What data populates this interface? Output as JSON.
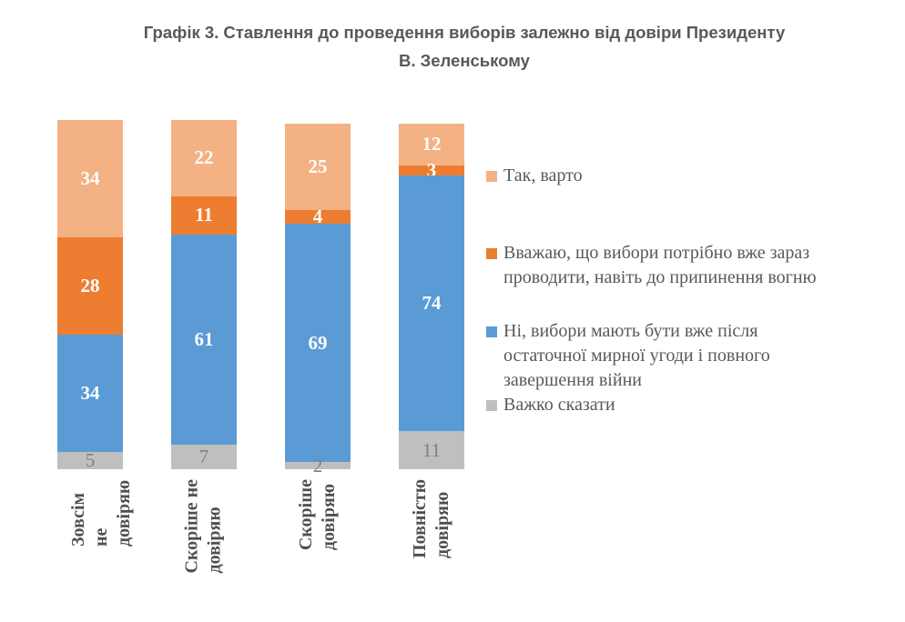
{
  "title": {
    "text": "Графік 3. Ставлення до проведення виборів залежно від довіри Президенту\nВ. Зеленському"
  },
  "chart_data": {
    "type": "bar",
    "subtype": "stacked-column-100",
    "title": "Графік 3. Ставлення до проведення виборів залежно від довіри Президенту В. Зеленському",
    "categories": [
      "Зовсім не\nдовіряю",
      "Скоріше не\nдовіряю",
      "Скоріше\nдовіряю",
      "Повністю\nдовіряю"
    ],
    "series": [
      {
        "name": "Так, варто",
        "color": "#F4B183",
        "label_color": "#FFFFFF",
        "values": [
          34,
          22,
          25,
          12
        ]
      },
      {
        "name": "Вважаю, що вибори потрібно вже зараз проводити, навіть до припинення вогню",
        "color": "#ED7D31",
        "label_color": "#FFFFFF",
        "values": [
          28,
          11,
          4,
          3
        ]
      },
      {
        "name": "Ні, вибори мають бути вже після остаточної мирної угоди і повного завершення війни",
        "color": "#5B9BD5",
        "label_color": "#FFFFFF",
        "values": [
          34,
          61,
          69,
          74
        ]
      },
      {
        "name": "Важко сказати",
        "color": "#BFBFBF",
        "label_color": "#7F7F7F",
        "values": [
          5,
          7,
          2,
          11
        ]
      }
    ],
    "value_unit": "percent",
    "ylim": [
      0,
      101
    ],
    "grid": false,
    "axis_lines": false,
    "legend_position": "right"
  },
  "legend": {
    "items": [
      {
        "label": "Так, варто",
        "color": "#F4B183"
      },
      {
        "label": "Вважаю, що вибори потрібно вже зараз\nпроводити, навіть до припинення вогню",
        "color": "#ED7D31"
      },
      {
        "label": "Ні, вибори мають бути вже після\nостаточної мирної угоди і повного\nзавершення війни",
        "color": "#5B9BD5"
      },
      {
        "label": "Важко сказати",
        "color": "#BFBFBF"
      }
    ]
  }
}
